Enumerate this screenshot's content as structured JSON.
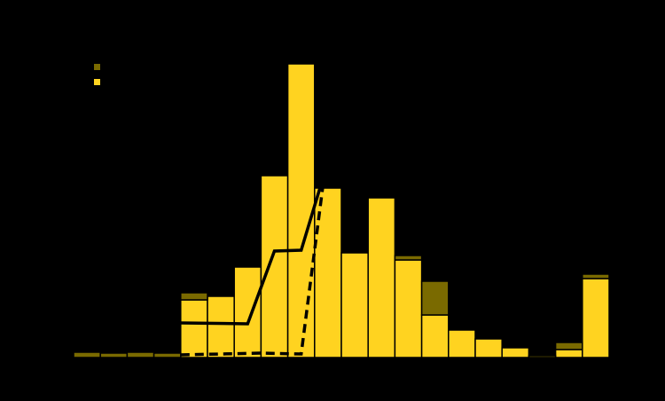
{
  "chart_data": {
    "type": "histogram",
    "bins": [
      0,
      1,
      2,
      3,
      4,
      5,
      6,
      7,
      8,
      9,
      10,
      11,
      12,
      13,
      14,
      15,
      16,
      17,
      18,
      19,
      20
    ],
    "xlim": [
      0,
      20
    ],
    "ylim": [
      0,
      340
    ],
    "series": [
      {
        "color": "#ffd320",
        "values": [
          0,
          0,
          0,
          0,
          65,
          69,
          102,
          205,
          331,
          191,
          118,
          180,
          110,
          48,
          31,
          21,
          11,
          0,
          9,
          89
        ]
      },
      {
        "color": "#7a6a00",
        "values": [
          6,
          5,
          6,
          5,
          8,
          0,
          0,
          0,
          0,
          0,
          0,
          0,
          5,
          38,
          0,
          0,
          0,
          2,
          8,
          5
        ]
      }
    ],
    "lines": [
      {
        "style": "solid",
        "x": [
          4,
          6.5,
          7.5,
          8.5,
          9.2
        ],
        "y": [
          39,
          38,
          120,
          121,
          191
        ]
      },
      {
        "style": "dashed",
        "x": [
          4,
          7,
          8.5,
          9.3
        ],
        "y": [
          3,
          5,
          4,
          191
        ]
      }
    ]
  }
}
